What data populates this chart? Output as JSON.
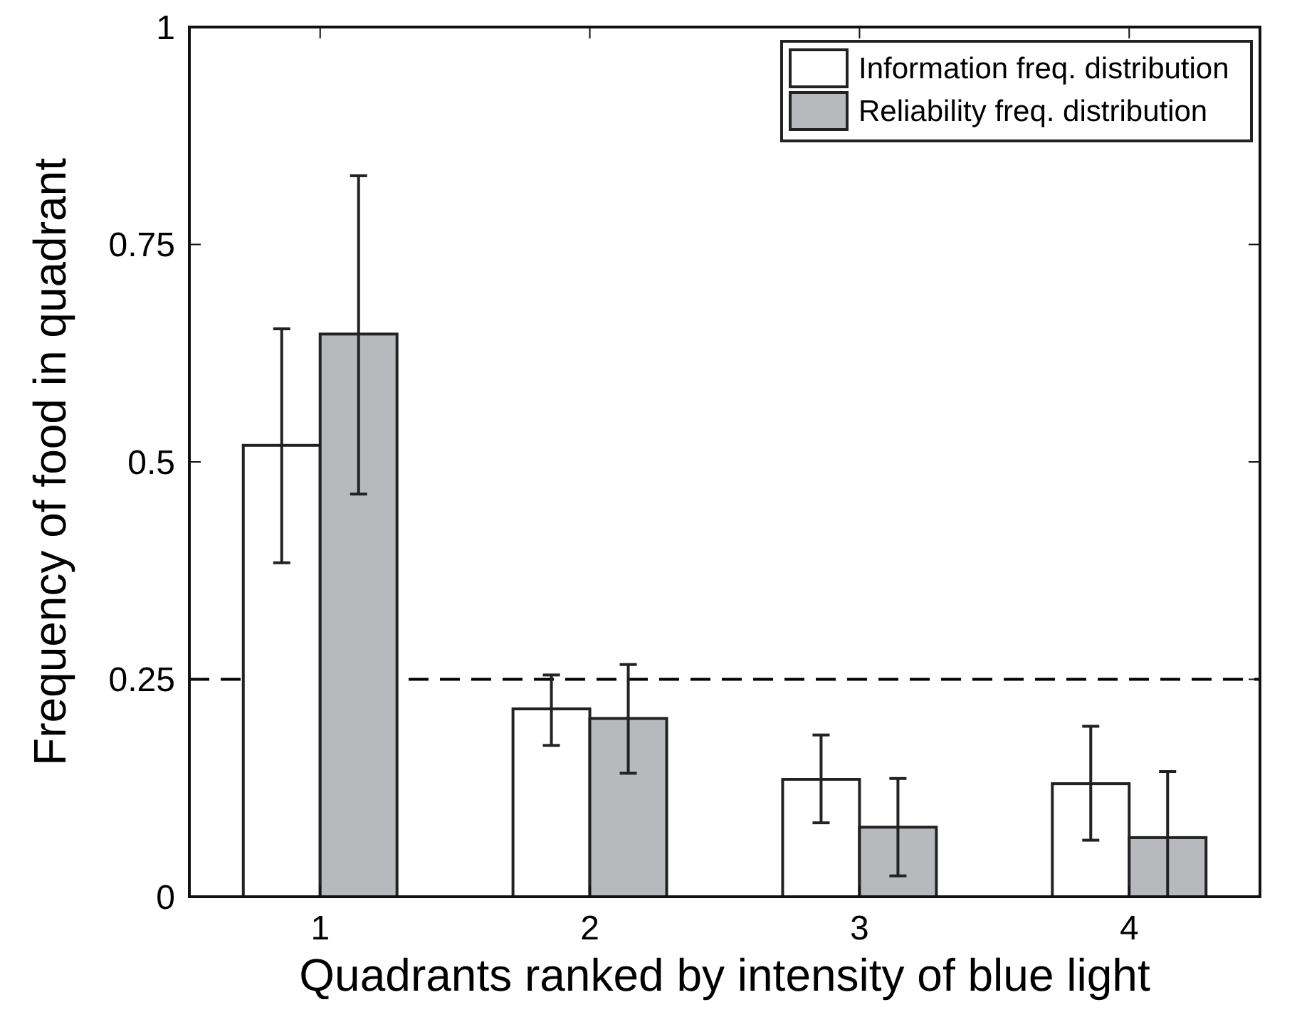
{
  "chart_data": {
    "type": "bar",
    "xlabel": "Quadrants ranked by intensity of blue light",
    "ylabel": "Frequency of food in quadrant",
    "categories": [
      "1",
      "2",
      "3",
      "4"
    ],
    "series": [
      {
        "name": "Information freq. distribution",
        "color": "#ffffff",
        "values": [
          0.519,
          0.216,
          0.135,
          0.13
        ],
        "errors": [
          [
            0.384,
            0.653
          ],
          [
            0.174,
            0.255
          ],
          [
            0.085,
            0.186
          ],
          [
            0.065,
            0.196
          ]
        ]
      },
      {
        "name": "Reliability freq. distribution",
        "color": "#b8b9bc",
        "values": [
          0.647,
          0.205,
          0.08,
          0.068
        ],
        "errors": [
          [
            0.463,
            0.829
          ],
          [
            0.142,
            0.267
          ],
          [
            0.024,
            0.136
          ],
          [
            0,
            0.144
          ]
        ]
      }
    ],
    "ylim": [
      0,
      1
    ],
    "yticks": [
      0,
      {
        "value": 0.25,
        "label": "0.25"
      },
      {
        "value": 0.5,
        "label": "0.5"
      },
      {
        "value": 0.75,
        "label": "0.75"
      },
      1
    ],
    "ref_lines": [
      {
        "axis": "y",
        "value": 0.25,
        "line_style": "dashed",
        "color": "#000000"
      }
    ],
    "legend": "top right",
    "grid": false
  }
}
